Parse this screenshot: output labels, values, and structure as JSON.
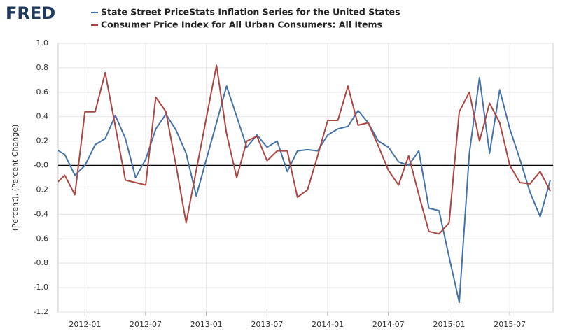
{
  "logo": "FRED",
  "chart_data": {
    "type": "line",
    "y_label": "(Percent), (Percent Change)",
    "x": [
      "2011-10",
      "2011-11",
      "2011-12",
      "2012-01",
      "2012-02",
      "2012-03",
      "2012-04",
      "2012-05",
      "2012-06",
      "2012-07",
      "2012-08",
      "2012-09",
      "2012-10",
      "2012-11",
      "2012-12",
      "2013-01",
      "2013-02",
      "2013-03",
      "2013-04",
      "2013-05",
      "2013-06",
      "2013-07",
      "2013-08",
      "2013-09",
      "2013-10",
      "2013-11",
      "2013-12",
      "2014-01",
      "2014-02",
      "2014-03",
      "2014-04",
      "2014-05",
      "2014-06",
      "2014-07",
      "2014-08",
      "2014-09",
      "2014-10",
      "2014-11",
      "2014-12",
      "2015-01",
      "2015-02",
      "2015-03",
      "2015-04",
      "2015-05",
      "2015-06",
      "2015-07",
      "2015-08",
      "2015-09",
      "2015-10",
      "2015-11"
    ],
    "series": [
      {
        "name": "State Street PriceStats Inflation Series for the United States",
        "color": "#4572a7",
        "values": [
          0.14,
          0.09,
          -0.08,
          0.0,
          0.17,
          0.22,
          0.41,
          0.22,
          -0.1,
          0.05,
          0.3,
          0.42,
          0.29,
          0.1,
          -0.25,
          0.05,
          0.35,
          0.65,
          0.4,
          0.15,
          0.25,
          0.15,
          0.2,
          -0.05,
          0.12,
          0.13,
          0.12,
          0.25,
          0.3,
          0.32,
          0.45,
          0.35,
          0.2,
          0.15,
          0.03,
          0.0,
          0.12,
          -0.35,
          -0.37,
          -0.75,
          -1.12,
          0.1,
          0.72,
          0.1,
          0.62,
          0.3,
          0.05,
          -0.22,
          -0.42,
          -0.12
        ]
      },
      {
        "name": "Consumer Price Index for All Urban Consumers: All Items",
        "color": "#aa4643",
        "values": [
          -0.16,
          -0.08,
          -0.24,
          0.44,
          0.44,
          0.76,
          0.32,
          -0.12,
          -0.14,
          -0.16,
          0.56,
          0.44,
          0.0,
          -0.47,
          -0.04,
          0.39,
          0.82,
          0.26,
          -0.1,
          0.2,
          0.24,
          0.04,
          0.12,
          0.12,
          -0.26,
          -0.2,
          0.08,
          0.37,
          0.37,
          0.65,
          0.33,
          0.35,
          0.16,
          -0.04,
          -0.16,
          0.08,
          -0.24,
          -0.54,
          -0.56,
          -0.47,
          0.44,
          0.6,
          0.2,
          0.51,
          0.35,
          0.0,
          -0.14,
          -0.15,
          -0.05,
          -0.21
        ]
      }
    ],
    "xlim": [
      "2011-10",
      "2015-11"
    ],
    "xticks": [
      "2012-01",
      "2012-07",
      "2013-01",
      "2013-07",
      "2014-01",
      "2014-07",
      "2015-01",
      "2015-07"
    ],
    "ylim": [
      -1.2,
      1.0
    ],
    "yticks": [
      {
        "value": 1.0,
        "label": "1.0"
      },
      0.8,
      0.6,
      0.4,
      0.2,
      {
        "value": 0,
        "label": "-0.0"
      },
      -0.2,
      -0.4,
      -0.6,
      -0.8,
      {
        "value": -1.0,
        "label": "-1.0"
      },
      -1.2
    ],
    "grid": true,
    "zero_line": true
  }
}
